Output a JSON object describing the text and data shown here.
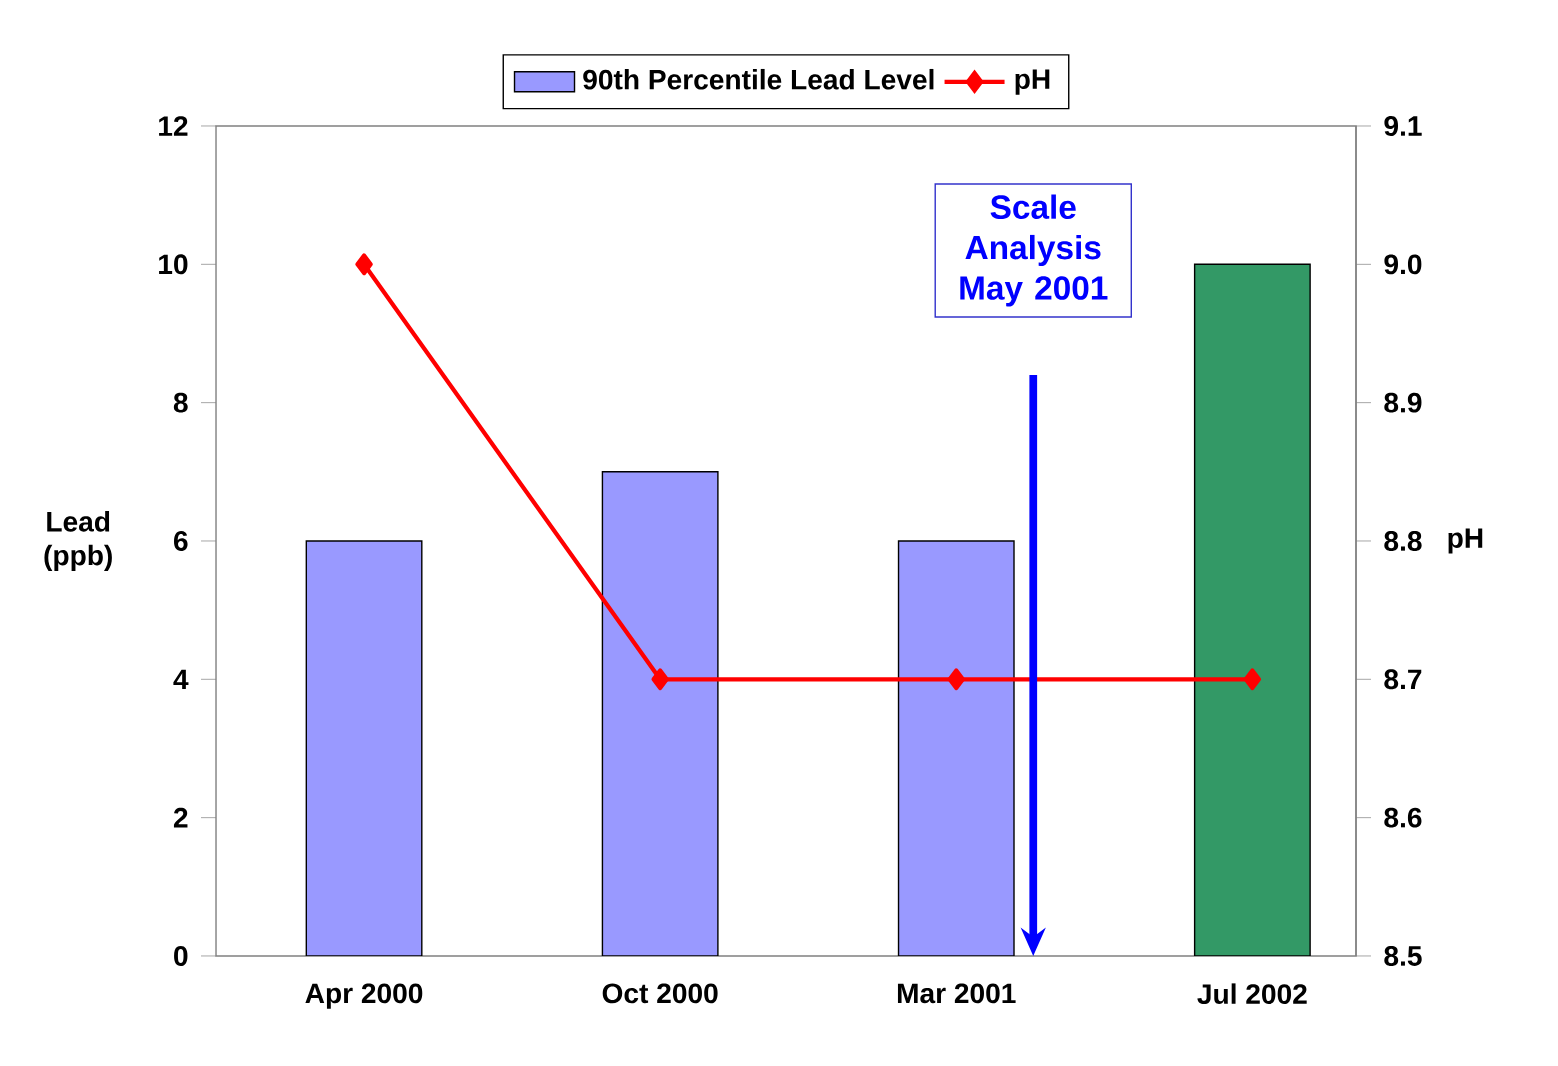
{
  "chart_data": {
    "type": "bar",
    "categories": [
      "Apr 2000",
      "Oct 2000",
      "Mar 2001",
      "Jul 2002"
    ],
    "series": [
      {
        "name": "90th Percentile Lead Level",
        "colors": [
          "#9999ff",
          "#9999ff",
          "#9999ff",
          "#339966"
        ],
        "values": [
          6,
          7,
          6,
          10
        ]
      },
      {
        "name": "pH",
        "type": "line",
        "axis": "y2",
        "color": "#ff0000",
        "values": [
          9.0,
          8.7,
          8.7,
          8.7
        ]
      }
    ],
    "ylabel": "Lead (ppb)",
    "y2label": "pH",
    "ylim": [
      0,
      12
    ],
    "yticks": [
      0,
      2,
      4,
      6,
      8,
      10,
      12
    ],
    "y2lim": [
      8.5,
      9.1
    ],
    "y2ticks": [
      {
        "value": 8.5,
        "label": "8.5"
      },
      {
        "value": 8.6,
        "label": "8.6"
      },
      {
        "value": 8.7,
        "label": "8.7"
      },
      {
        "value": 8.8,
        "label": "8.8"
      },
      {
        "value": 8.9,
        "label": "8.9"
      },
      {
        "value": 9.0,
        "label": "9.0"
      },
      {
        "value": 9.1,
        "label": "9.1"
      }
    ],
    "annotations": [
      "Scale Analysis May 2001"
    ],
    "marker": "diamond",
    "legend": "top",
    "grid": false
  }
}
